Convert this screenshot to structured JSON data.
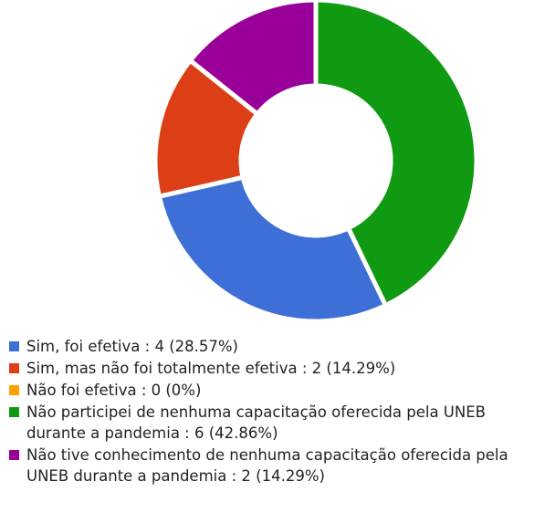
{
  "chart_data": {
    "type": "doughnut",
    "categories": [
      "Sim, foi efetiva :",
      "Sim, mas não foi totalmente efetiva :",
      "Não foi efetiva :",
      "Não participei de nenhuma capacitação oferecida pela UNEB durante a pandemia :",
      "Não tive conhecimento de nenhuma capacitação oferecida pela UNEB durante a pandemia :"
    ],
    "values": [
      4,
      2,
      0,
      6,
      2
    ],
    "value_labels": [
      "4 (28.57%)",
      "2 (14.29%)",
      "0 (0%)",
      "6 (42.86%)",
      "2 (14.29%)"
    ],
    "colors": [
      "#3d6fd6",
      "#dc3f16",
      "#ff9e00",
      "#109a12",
      "#990099"
    ],
    "legend": "bottom"
  }
}
